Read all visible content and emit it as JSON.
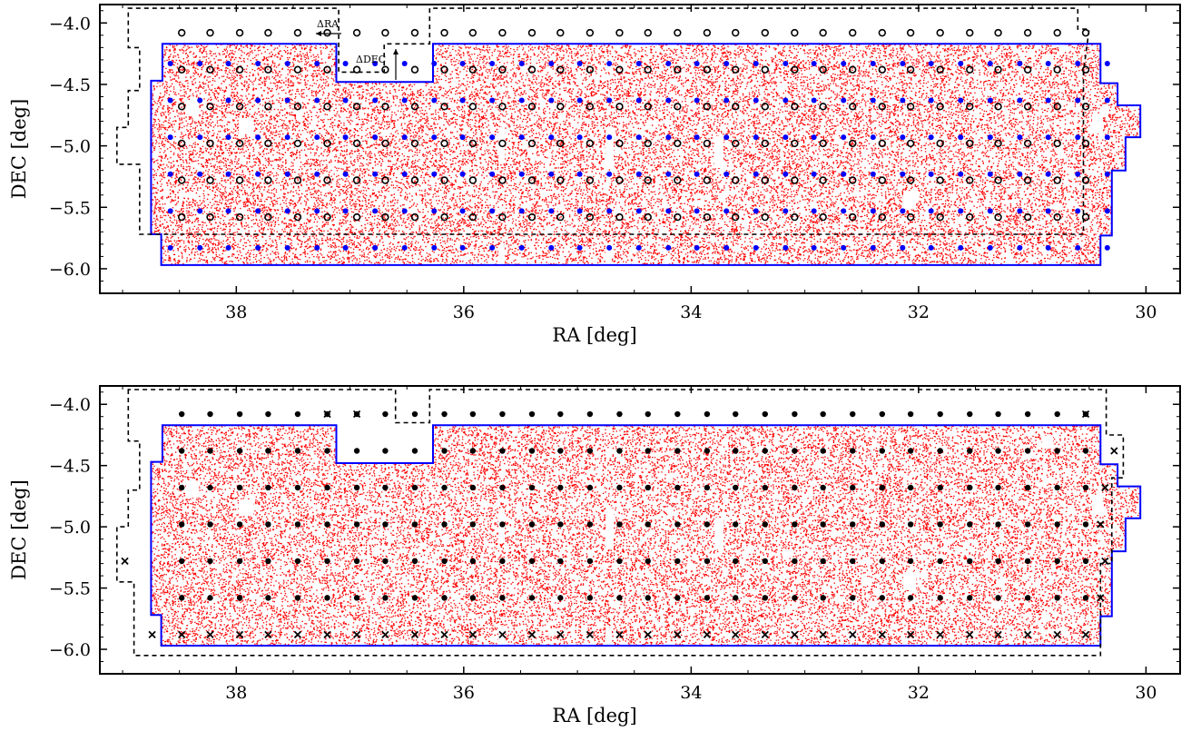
{
  "chart_data": [
    {
      "type": "scatter",
      "panel": "top",
      "xlabel": "RA [deg]",
      "ylabel": "DEC [deg]",
      "xlim": [
        39.2,
        29.7
      ],
      "ylim": [
        -6.2,
        -3.85
      ],
      "x_ticks": [
        38,
        36,
        34,
        32,
        30
      ],
      "y_ticks": [
        -4.0,
        -4.5,
        -5.0,
        -5.5,
        -6.0
      ],
      "x_tick_labels": [
        "38",
        "36",
        "34",
        "32",
        "30"
      ],
      "y_tick_labels": [
        "−4.0",
        "−4.5",
        "−5.0",
        "−5.5",
        "−6.0"
      ],
      "annotations": [
        "ΔRA",
        "ΔDEC"
      ],
      "grid": false,
      "colors": {
        "galaxies": "#ff0000",
        "footprint": "#0000ff",
        "markers": "#000000",
        "pointings": "#0000ff"
      },
      "series": [
        {
          "kind": "footprint",
          "color": "#0000ff",
          "outline": [
            [
              38.66,
              -5.97
            ],
            [
              30.4,
              -5.97
            ],
            [
              30.4,
              -5.73
            ],
            [
              30.3,
              -5.73
            ],
            [
              30.3,
              -5.2
            ],
            [
              30.18,
              -5.2
            ],
            [
              30.18,
              -4.93
            ],
            [
              30.05,
              -4.93
            ],
            [
              30.05,
              -4.67
            ],
            [
              30.25,
              -4.67
            ],
            [
              30.25,
              -4.49
            ],
            [
              30.4,
              -4.49
            ],
            [
              30.4,
              -4.17
            ],
            [
              36.27,
              -4.17
            ],
            [
              36.27,
              -4.48
            ],
            [
              37.12,
              -4.48
            ],
            [
              37.12,
              -4.17
            ],
            [
              38.65,
              -4.17
            ],
            [
              38.65,
              -4.47
            ],
            [
              38.75,
              -4.47
            ],
            [
              38.75,
              -5.72
            ],
            [
              38.66,
              -5.72
            ]
          ]
        },
        {
          "kind": "pointing-grid",
          "marker": "dot",
          "color": "#0000ff",
          "ra": [
            38.58,
            38.32,
            38.07,
            37.81,
            37.55,
            37.29,
            37.04,
            36.78,
            36.52,
            36.26,
            36.01,
            35.75,
            35.49,
            35.23,
            34.98,
            34.72,
            34.46,
            34.2,
            33.95,
            33.69,
            33.43,
            33.17,
            32.92,
            32.66,
            32.4,
            32.14,
            31.89,
            31.63,
            31.37,
            31.11,
            30.86,
            30.6,
            30.34
          ],
          "dec": [
            -4.33,
            -4.63,
            -4.93,
            -5.23,
            -5.53,
            -5.83
          ]
        },
        {
          "kind": "pointing-grid",
          "marker": "open-circle",
          "color": "#000000",
          "ra": [
            38.48,
            38.23,
            37.97,
            37.72,
            37.46,
            37.2,
            36.94,
            36.69,
            36.43,
            36.17,
            35.92,
            35.66,
            35.4,
            35.15,
            34.89,
            34.63,
            34.38,
            34.12,
            33.86,
            33.61,
            33.35,
            33.09,
            32.84,
            32.58,
            32.32,
            32.07,
            31.81,
            31.55,
            31.3,
            31.04,
            30.78,
            30.53
          ],
          "dec": [
            -4.08,
            -4.38,
            -4.68,
            -4.98,
            -5.28,
            -5.58
          ]
        }
      ]
    },
    {
      "type": "scatter",
      "panel": "bottom",
      "xlabel": "RA [deg]",
      "ylabel": "DEC [deg]",
      "xlim": [
        39.2,
        29.7
      ],
      "ylim": [
        -6.2,
        -3.85
      ],
      "x_ticks": [
        38,
        36,
        34,
        32,
        30
      ],
      "y_ticks": [
        -4.0,
        -4.5,
        -5.0,
        -5.5,
        -6.0
      ],
      "x_tick_labels": [
        "38",
        "36",
        "34",
        "32",
        "30"
      ],
      "y_tick_labels": [
        "−4.0",
        "−4.5",
        "−5.0",
        "−5.5",
        "−6.0"
      ],
      "grid": false,
      "series": [
        {
          "kind": "footprint",
          "color": "#0000ff",
          "same_as": "top"
        },
        {
          "kind": "pointing-grid",
          "marker": "filled-dot",
          "color": "#000000",
          "ra": [
            38.48,
            38.23,
            37.97,
            37.72,
            37.46,
            37.2,
            36.94,
            36.69,
            36.43,
            36.17,
            35.92,
            35.66,
            35.4,
            35.15,
            34.89,
            34.63,
            34.38,
            34.12,
            33.86,
            33.61,
            33.35,
            33.09,
            32.84,
            32.58,
            32.32,
            32.07,
            31.81,
            31.55,
            31.3,
            31.04,
            30.78,
            30.53
          ],
          "dec": [
            -4.08,
            -4.38,
            -4.68,
            -4.98,
            -5.28,
            -5.58
          ]
        },
        {
          "kind": "pointings",
          "marker": "cross",
          "color": "#000000",
          "points": [
            [
              37.2,
              -4.08
            ],
            [
              36.94,
              -4.08
            ],
            [
              30.53,
              -4.08
            ],
            [
              30.28,
              -4.38
            ],
            [
              30.36,
              -4.68
            ],
            [
              30.4,
              -4.98
            ],
            [
              30.36,
              -5.28
            ],
            [
              30.4,
              -5.58
            ],
            [
              38.98,
              -5.28
            ],
            [
              38.74,
              -5.88
            ],
            [
              38.48,
              -5.88
            ],
            [
              38.23,
              -5.88
            ],
            [
              37.97,
              -5.88
            ],
            [
              37.72,
              -5.88
            ],
            [
              37.46,
              -5.88
            ],
            [
              37.2,
              -5.88
            ],
            [
              36.94,
              -5.88
            ],
            [
              36.69,
              -5.88
            ],
            [
              36.43,
              -5.88
            ],
            [
              36.17,
              -5.88
            ],
            [
              35.92,
              -5.88
            ],
            [
              35.66,
              -5.88
            ],
            [
              35.4,
              -5.88
            ],
            [
              35.15,
              -5.88
            ],
            [
              34.89,
              -5.88
            ],
            [
              34.63,
              -5.88
            ],
            [
              34.38,
              -5.88
            ],
            [
              34.12,
              -5.88
            ],
            [
              33.86,
              -5.88
            ],
            [
              33.61,
              -5.88
            ],
            [
              33.35,
              -5.88
            ],
            [
              33.09,
              -5.88
            ],
            [
              32.84,
              -5.88
            ],
            [
              32.58,
              -5.88
            ],
            [
              32.32,
              -5.88
            ],
            [
              32.07,
              -5.88
            ],
            [
              31.81,
              -5.88
            ],
            [
              31.55,
              -5.88
            ],
            [
              31.3,
              -5.88
            ],
            [
              31.04,
              -5.88
            ],
            [
              30.78,
              -5.88
            ],
            [
              30.53,
              -5.88
            ]
          ]
        }
      ]
    }
  ]
}
